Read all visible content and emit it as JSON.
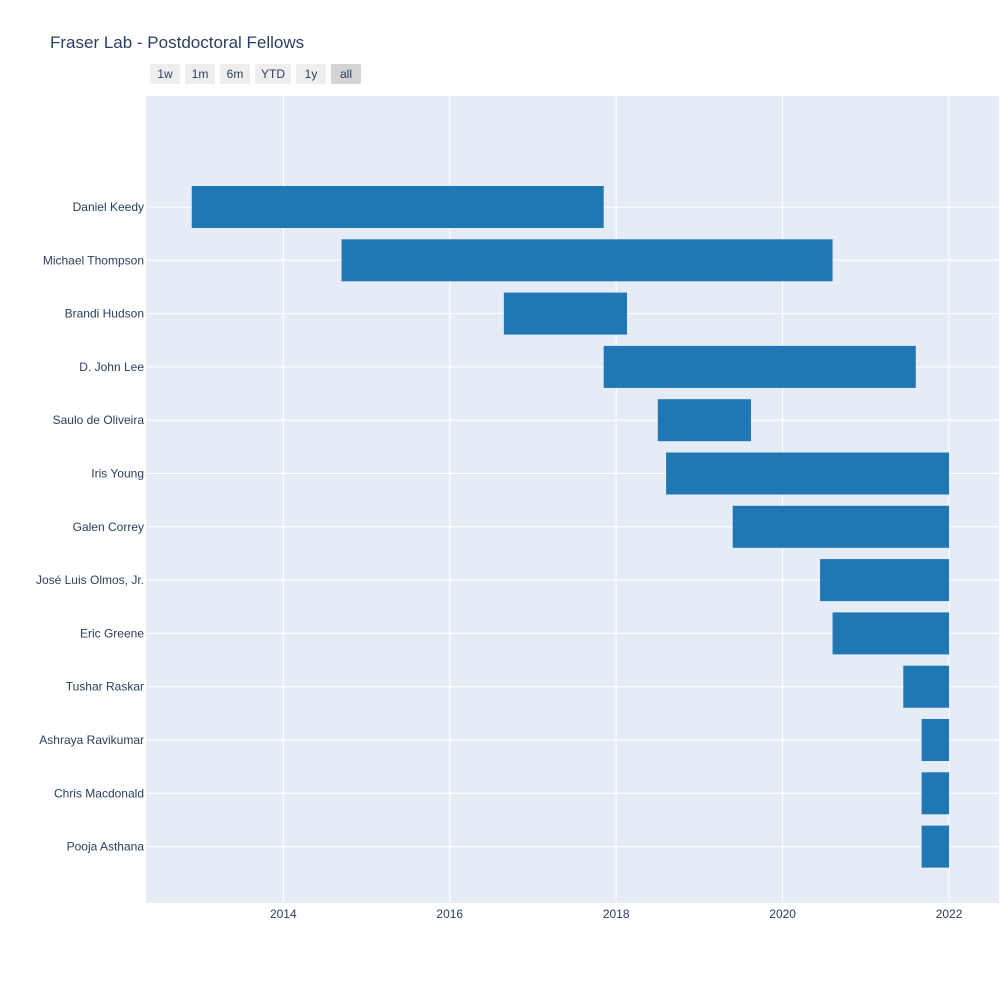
{
  "chart_title": "Fraser Lab - Postdoctoral Fellows",
  "range_selector": {
    "buttons": [
      "1w",
      "1m",
      "6m",
      "YTD",
      "1y",
      "all"
    ],
    "active": "all"
  },
  "colors": {
    "plot_bg": "#e5ecf6",
    "bar": "#1f77b4",
    "grid": "#ffffff",
    "text": "#2a3f5f"
  },
  "chart_data": {
    "type": "bar",
    "orientation": "horizontal",
    "title": "Fraser Lab - Postdoctoral Fellows",
    "xlim": [
      2012.35,
      2022.6
    ],
    "x_ticks": [
      "2014",
      "2016",
      "2018",
      "2020",
      "2022"
    ],
    "x_tick_values": [
      2014,
      2016,
      2018,
      2020,
      2022
    ],
    "grid": true,
    "categories": [
      "Daniel Keedy",
      "Michael Thompson",
      "Brandi Hudson",
      "D. John Lee",
      "Saulo de Oliveira",
      "Iris Young",
      "Galen Correy",
      "José Luis Olmos, Jr.",
      "Eric Greene",
      "Tushar Raskar",
      "Ashraya Ravikumar",
      "Chris Macdonald",
      "Pooja Asthana"
    ],
    "series": [
      {
        "start": [
          2012.9,
          2014.7,
          2016.65,
          2017.85,
          2018.5,
          2018.6,
          2019.4,
          2020.45,
          2020.6,
          2021.45,
          2021.67,
          2021.67,
          2021.67
        ],
        "end": [
          2017.85,
          2020.6,
          2018.13,
          2021.6,
          2019.62,
          2022.0,
          2022.0,
          2022.0,
          2022.0,
          2022.0,
          2022.0,
          2022.0,
          2022.0
        ]
      }
    ]
  }
}
